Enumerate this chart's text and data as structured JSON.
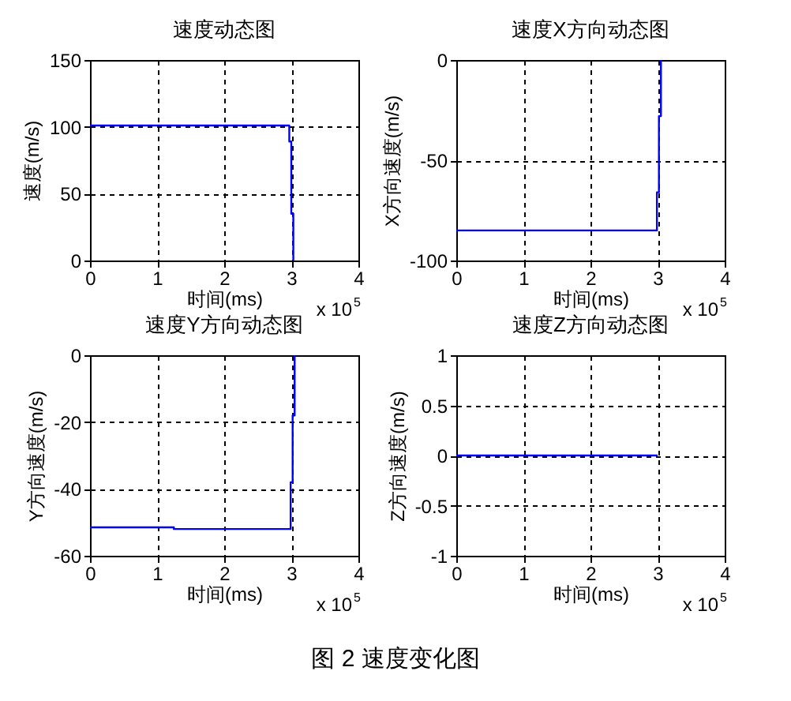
{
  "chart_data": [
    {
      "type": "line",
      "title": "速度动态图",
      "xlabel": "时间(ms)",
      "ylabel": "速度(m/s)",
      "x": [
        0,
        2.97,
        2.97,
        3.0,
        3.0,
        3.03,
        3.03
      ],
      "series": [
        {
          "color": "#0000ff",
          "values": [
            101,
            101,
            89,
            89,
            35,
            35,
            0
          ]
        }
      ],
      "xlim": [
        0,
        4
      ],
      "xticks": [
        0,
        1,
        2,
        3,
        4
      ],
      "ylim": [
        0,
        150
      ],
      "yticks": [
        0,
        50,
        100,
        150
      ],
      "grid": true,
      "annotations": [
        "x 10$^{5}$"
      ]
    },
    {
      "type": "line",
      "title": "速度X方向动态图",
      "xlabel": "时间(ms)",
      "ylabel": "X方向速度(m/s)",
      "x": [
        0,
        2.99,
        2.99,
        3.02,
        3.02,
        3.05,
        3.05
      ],
      "series": [
        {
          "color": "#0000ff",
          "values": [
            -85,
            -85,
            -66,
            -66,
            -28,
            -28,
            0
          ]
        }
      ],
      "xlim": [
        0,
        4
      ],
      "xticks": [
        0,
        1,
        2,
        3,
        4
      ],
      "ylim": [
        -100,
        0
      ],
      "yticks": [
        -100,
        -50,
        0
      ],
      "grid": true,
      "annotations": [
        "x 10$^{5}$"
      ]
    },
    {
      "type": "line",
      "title": "速度Y方向动态图",
      "xlabel": "时间(ms)",
      "ylabel": "Y方向速度(m/s)",
      "x": [
        0,
        1.25,
        1.25,
        2.99,
        2.99,
        3.02,
        3.02,
        3.05,
        3.05
      ],
      "series": [
        {
          "color": "#0000ff",
          "values": [
            -51.5,
            -51.5,
            -52,
            -52,
            -38,
            -38,
            -18,
            -18,
            0
          ]
        }
      ],
      "xlim": [
        0,
        4
      ],
      "xticks": [
        0,
        1,
        2,
        3,
        4
      ],
      "ylim": [
        -60,
        0
      ],
      "yticks": [
        -60,
        -40,
        -20,
        0
      ],
      "grid": true,
      "annotations": [
        "x 10$^{5}$"
      ]
    },
    {
      "type": "line",
      "title": "速度Z方向动态图",
      "xlabel": "时间(ms)",
      "ylabel": "Z方向速度(m/s)",
      "x": [
        0,
        3
      ],
      "series": [
        {
          "color": "#0000ff",
          "values": [
            0,
            0
          ]
        }
      ],
      "xlim": [
        0,
        4
      ],
      "xticks": [
        0,
        1,
        2,
        3,
        4
      ],
      "ylim": [
        -1,
        1
      ],
      "yticks": [
        -1,
        -0.5,
        0,
        0.5,
        1
      ],
      "grid": true,
      "annotations": [
        "x 10$^{5}$",
        "图 2 速度变化图"
      ]
    }
  ]
}
